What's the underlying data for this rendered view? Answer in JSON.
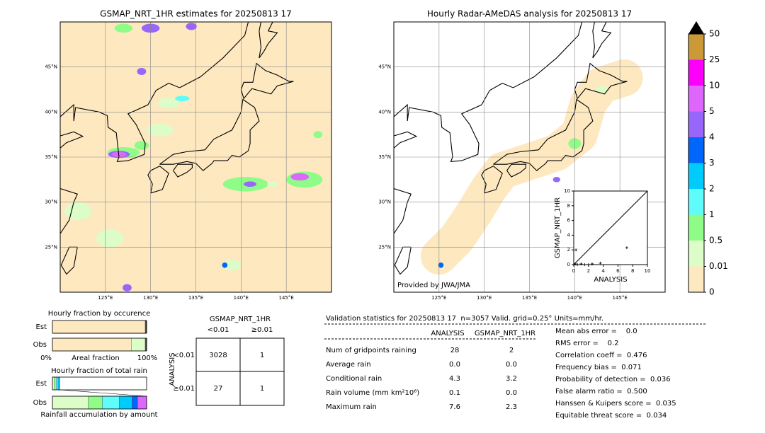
{
  "maps": [
    {
      "title": "GSMAP_NRT_1HR estimates for 20250813 17",
      "lon_ticks": [
        "125°E",
        "130°E",
        "135°E",
        "140°E",
        "145°E"
      ],
      "lat_ticks": [
        "25°N",
        "30°N",
        "35°N",
        "40°N",
        "45°N"
      ]
    },
    {
      "title": "Hourly Radar-AMeDAS analysis for 20250813 17",
      "lon_ticks": [
        "125°E",
        "130°E",
        "135°E",
        "140°E",
        "145°E"
      ],
      "lat_ticks": [
        "25°N",
        "30°N",
        "35°N",
        "40°N",
        "45°N"
      ],
      "credit": "Provided by JWA/JMA"
    }
  ],
  "colorbar": {
    "levels": [
      0,
      0.01,
      0.5,
      1,
      2,
      3,
      4,
      5,
      10,
      25,
      50
    ],
    "colors": [
      "#fde8c0",
      "#dcfcc8",
      "#90fc88",
      "#60fcfc",
      "#00ccfc",
      "#0066fc",
      "#9966fc",
      "#dd66fc",
      "#fc00fc",
      "#cc9938"
    ],
    "extend_color": "#000000"
  },
  "scatter": {
    "xlabel": "ANALYSIS",
    "ylabel": "GSMAP_NRT_1HR",
    "xlim": [
      0,
      10
    ],
    "ylim": [
      0,
      10
    ],
    "xticks": [
      0,
      2,
      4,
      6,
      8,
      10
    ],
    "yticks": [
      0,
      2,
      4,
      6,
      8,
      10
    ],
    "x": [
      0,
      0.2,
      0.5,
      1,
      1.5,
      2,
      2.5,
      3.6,
      0.3,
      7.2
    ],
    "y": [
      0,
      0.1,
      0,
      0.1,
      0,
      0,
      0.1,
      0.2,
      2,
      2.3
    ]
  },
  "occurrence": {
    "title": "Hourly fraction by occurence",
    "rows": [
      "Est",
      "Obs"
    ],
    "axis_labels": [
      "0%",
      "Areal fraction",
      "100%"
    ],
    "segments": [
      [
        0.985,
        0.015
      ],
      [
        0.84,
        0.145,
        0.015
      ]
    ],
    "colors": [
      [
        "#fde8c0",
        "#404040"
      ],
      [
        "#fde8c0",
        "#dcfcc8",
        "#404040"
      ]
    ]
  },
  "total_rain": {
    "title": "Hourly fraction of total rain",
    "rows": [
      "Est",
      "Obs"
    ],
    "axis_label": "Rainfall accumulation by amount",
    "segments": [
      [
        0.02,
        0.02,
        0.02,
        0.02
      ],
      [
        0.38,
        0.15,
        0.18,
        0.135,
        0.06,
        0.095
      ]
    ],
    "colors": [
      "#dcfcc8",
      "#90fc88",
      "#60fcfc",
      "#00ccfc",
      "#0066fc",
      "#dd66fc"
    ]
  },
  "contingency": {
    "title": "GSMAP_NRT_1HR",
    "col_labels": [
      "<0.01",
      "≥0.01"
    ],
    "row_title": "ANALYSIS",
    "row_labels": [
      "<0.01",
      "≥0.01"
    ],
    "cells": [
      [
        "3028",
        "1"
      ],
      [
        "27",
        "1"
      ]
    ]
  },
  "stats": {
    "header": "Validation statistics for 20250813 17  n=3057 Valid. grid=0.25° Units=mm/hr.",
    "columns": [
      "ANALYSIS",
      "GSMAP_NRT_1HR"
    ],
    "rows": [
      {
        "label": "Num of gridpoints raining",
        "values": [
          "28",
          "2"
        ]
      },
      {
        "label": "Average rain",
        "values": [
          "0.0",
          "0.0"
        ]
      },
      {
        "label": "Conditional rain",
        "values": [
          "4.3",
          "3.2"
        ]
      },
      {
        "label": "Rain volume (mm km²10⁶)",
        "values": [
          "0.1",
          "0.0"
        ]
      },
      {
        "label": "Maximum rain",
        "values": [
          "7.6",
          "2.3"
        ]
      }
    ],
    "scores": [
      "Mean abs error =    0.0",
      "RMS error =    0.2",
      "Correlation coeff =  0.476",
      "Frequency bias =  0.071",
      "Probability of detection =  0.036",
      "False alarm ratio =  0.500",
      "Hanssen & Kuipers score =  0.035",
      "Equitable threat score =  0.034"
    ]
  }
}
